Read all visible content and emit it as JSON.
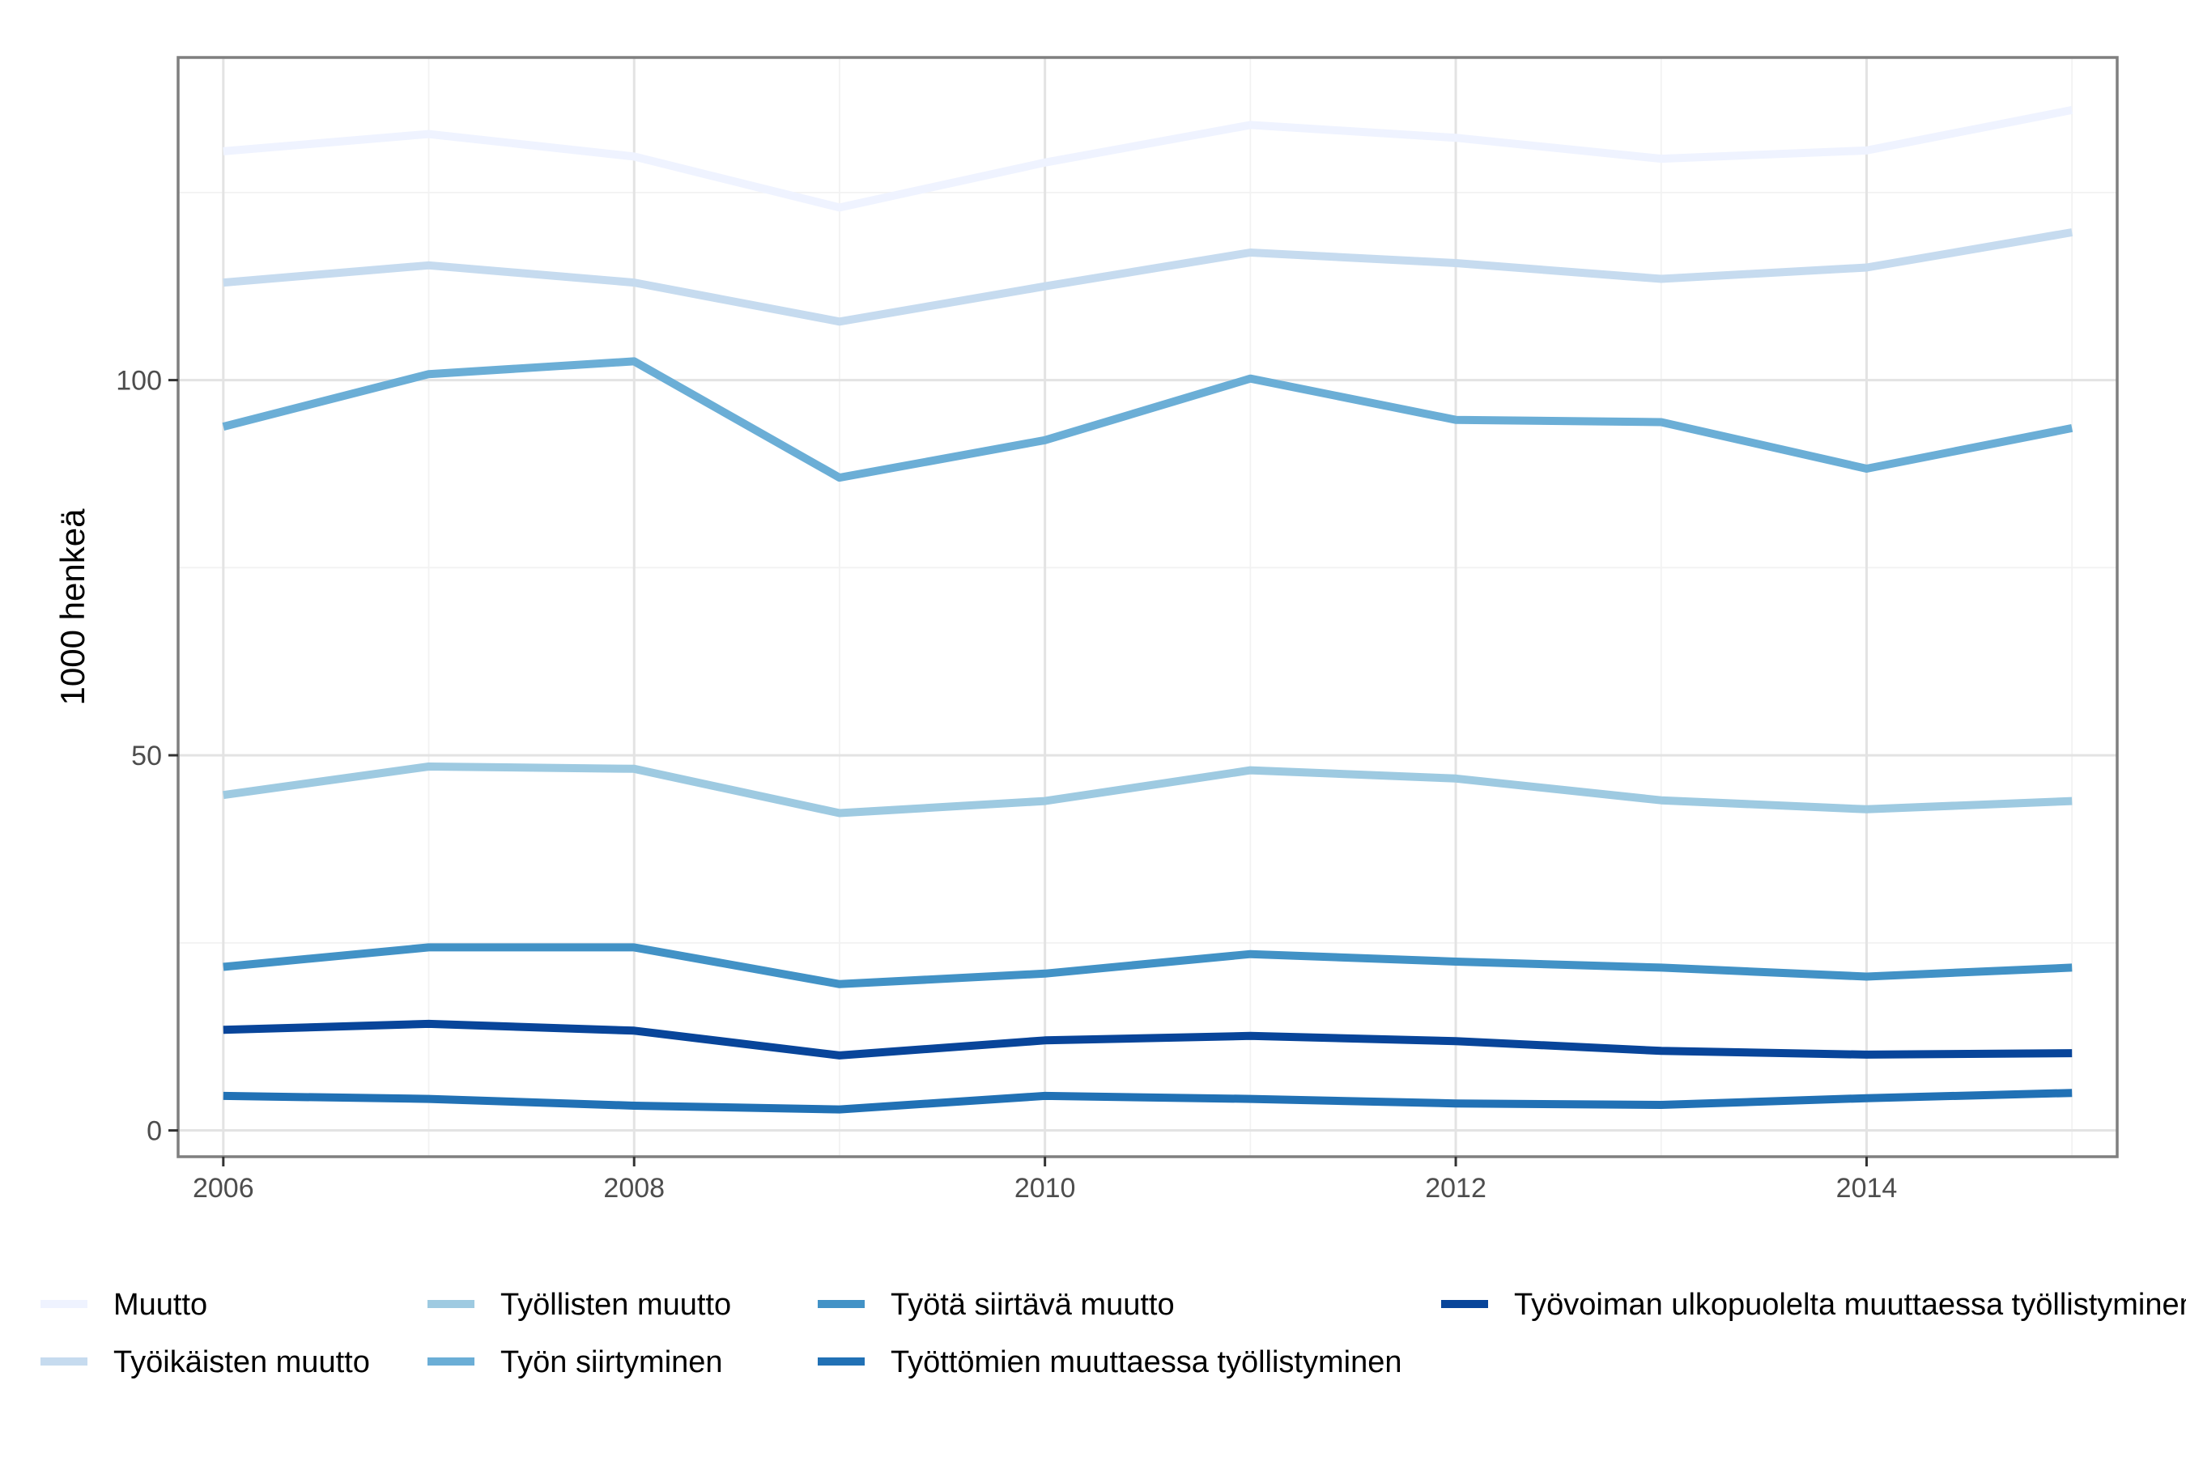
{
  "chart_data": {
    "type": "line",
    "title": "",
    "xlabel": "",
    "ylabel": "1000 henkeä",
    "x": [
      2006,
      2007,
      2008,
      2009,
      2010,
      2011,
      2012,
      2013,
      2014,
      2015
    ],
    "xlim": [
      2005.78,
      2015.22
    ],
    "ylim": [
      -3.5,
      143
    ],
    "x_ticks": [
      "2006",
      "2008",
      "2010",
      "2012",
      "2014"
    ],
    "y_ticks": [
      "0",
      "50",
      "100"
    ],
    "grid": true,
    "legend_position": "bottom",
    "series": [
      {
        "name": "Muutto",
        "color": "#eff3ff",
        "values": [
          130.5,
          132.8,
          129.8,
          123.0,
          129.0,
          134.0,
          132.3,
          129.5,
          130.6,
          136.0
        ]
      },
      {
        "name": "Työikäisten muutto",
        "color": "#c6dbef",
        "values": [
          113.0,
          115.3,
          113.0,
          107.8,
          112.5,
          117.0,
          115.6,
          113.5,
          115.0,
          119.7
        ]
      },
      {
        "name": "Työllisten muutto",
        "color": "#9ecae1",
        "values": [
          44.7,
          48.5,
          48.2,
          42.3,
          43.9,
          48.0,
          46.9,
          44.0,
          42.8,
          43.9
        ]
      },
      {
        "name": "Työn siirtyminen",
        "color": "#6baed6",
        "values": [
          93.8,
          100.8,
          102.5,
          87.0,
          92.0,
          100.2,
          94.7,
          94.4,
          88.2,
          93.6
        ]
      },
      {
        "name": "Työtä siirtävä muutto",
        "color": "#4292c6",
        "values": [
          21.8,
          24.4,
          24.4,
          19.5,
          20.9,
          23.5,
          22.5,
          21.7,
          20.5,
          21.7
        ]
      },
      {
        "name": "Työttömien muuttaessa työllistyminen",
        "color": "#2171b5",
        "values": [
          4.6,
          4.2,
          3.3,
          2.8,
          4.6,
          4.2,
          3.6,
          3.4,
          4.3,
          5.0
        ]
      },
      {
        "name": "Työvoiman ulkopuolelta muuttaessa työllistyminen",
        "color": "#08459a",
        "values": [
          13.4,
          14.2,
          13.3,
          10.0,
          12.0,
          12.6,
          11.9,
          10.6,
          10.1,
          10.3
        ]
      }
    ]
  }
}
